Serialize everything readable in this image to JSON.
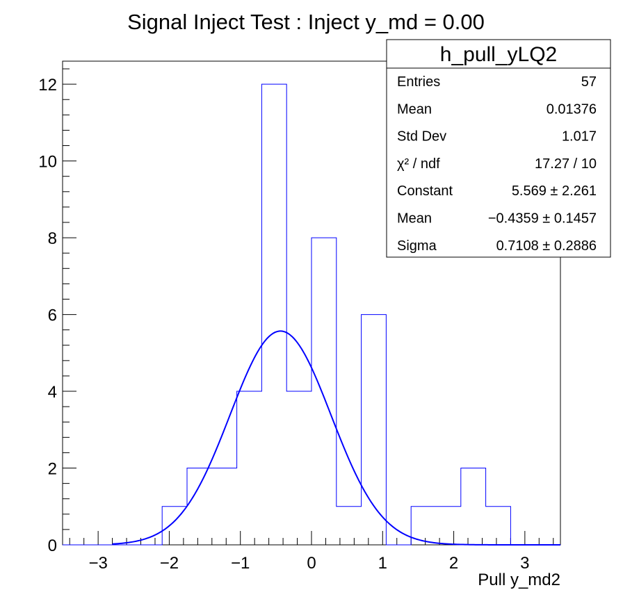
{
  "chart_data": {
    "type": "bar",
    "title": "Signal Inject Test : Inject y_md = 0.00",
    "xlabel": "Pull y_md2",
    "ylabel": "",
    "xlim": [
      -3.5,
      3.5
    ],
    "ylim": [
      0,
      12.6
    ],
    "bin_edges": [
      -3.5,
      -3.15,
      -2.8,
      -2.45,
      -2.1,
      -1.75,
      -1.4,
      -1.05,
      -0.7,
      -0.35,
      0.0,
      0.35,
      0.7,
      1.05,
      1.4,
      1.75,
      2.1,
      2.45,
      2.8,
      3.15,
      3.5
    ],
    "values": [
      0,
      0,
      0,
      0,
      1,
      2,
      2,
      4,
      12,
      4,
      8,
      1,
      6,
      0,
      1,
      1,
      2,
      1,
      0,
      0
    ],
    "x_ticks": [
      -3,
      -2,
      -1,
      0,
      1,
      2,
      3
    ],
    "x_tick_labels": [
      "−3",
      "−2",
      "−1",
      "0",
      "1",
      "2",
      "3"
    ],
    "y_ticks": [
      0,
      2,
      4,
      6,
      8,
      10,
      12
    ],
    "y_tick_labels": [
      "0",
      "2",
      "4",
      "6",
      "8",
      "10",
      "12"
    ],
    "fit": {
      "function": "gaus",
      "constant": 5.569,
      "mean": -0.4359,
      "sigma": 0.7108
    },
    "series_colors": {
      "histogram": "#0000ff",
      "fit": "#0000ff"
    }
  },
  "stats_box": {
    "name": "h_pull_yLQ2",
    "rows": [
      {
        "label": "Entries",
        "value": "57"
      },
      {
        "label": "Mean",
        "value": "0.01376"
      },
      {
        "label": "Std Dev",
        "value": "1.017"
      },
      {
        "label": "χ² / ndf",
        "value": "17.27 / 10"
      },
      {
        "label": "Constant",
        "value": "5.569 ± 2.261"
      },
      {
        "label": "Mean",
        "value": "−0.4359 ± 0.1457"
      },
      {
        "label": "Sigma",
        "value": "0.7108 ± 0.2886"
      }
    ]
  }
}
